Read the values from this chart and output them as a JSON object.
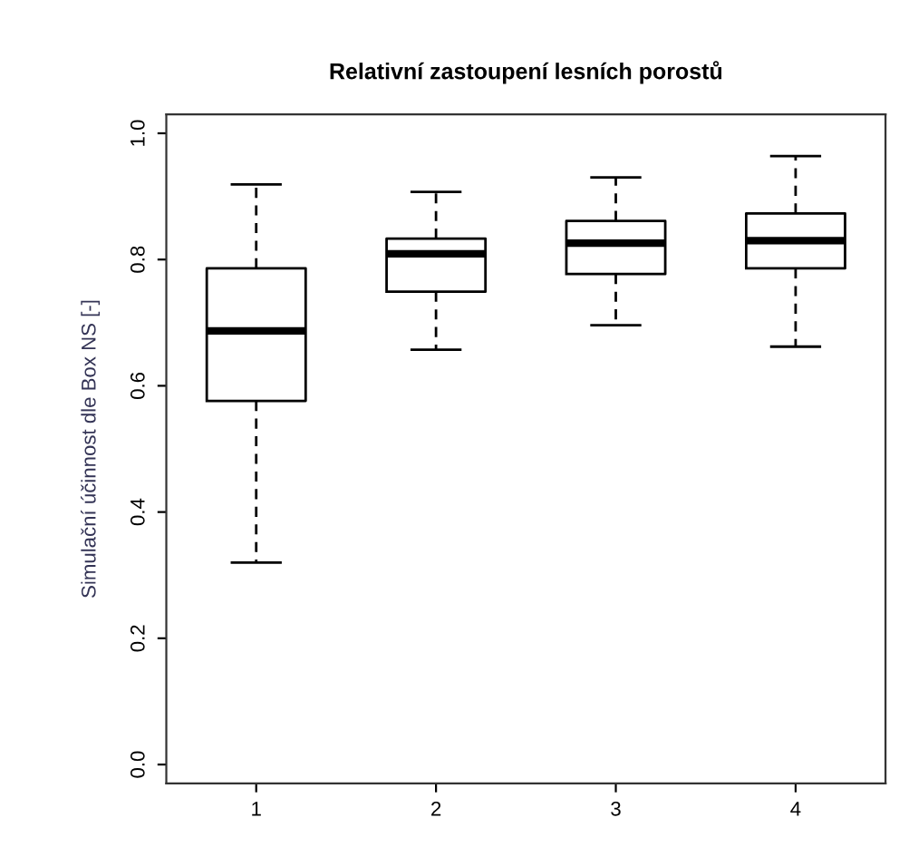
{
  "chart_data": {
    "type": "box",
    "title": "Relativní zastoupení lesních porostů",
    "ylabel": "Simulační účinnost dle Box NS [-]",
    "categories": [
      "1",
      "2",
      "3",
      "4"
    ],
    "boxes": [
      {
        "low": 0.32,
        "q1": 0.576,
        "median": 0.687,
        "q3": 0.786,
        "high": 0.919
      },
      {
        "low": 0.657,
        "q1": 0.749,
        "median": 0.809,
        "q3": 0.833,
        "high": 0.907
      },
      {
        "low": 0.696,
        "q1": 0.777,
        "median": 0.826,
        "q3": 0.861,
        "high": 0.93
      },
      {
        "low": 0.662,
        "q1": 0.786,
        "median": 0.83,
        "q3": 0.873,
        "high": 0.964
      }
    ],
    "ylim": [
      -0.03,
      1.03
    ],
    "yticks": [
      {
        "value": 0,
        "label": "0.0"
      },
      0.2,
      0.4,
      0.6,
      0.8,
      {
        "value": 1,
        "label": "1.0"
      }
    ],
    "grid": false
  }
}
